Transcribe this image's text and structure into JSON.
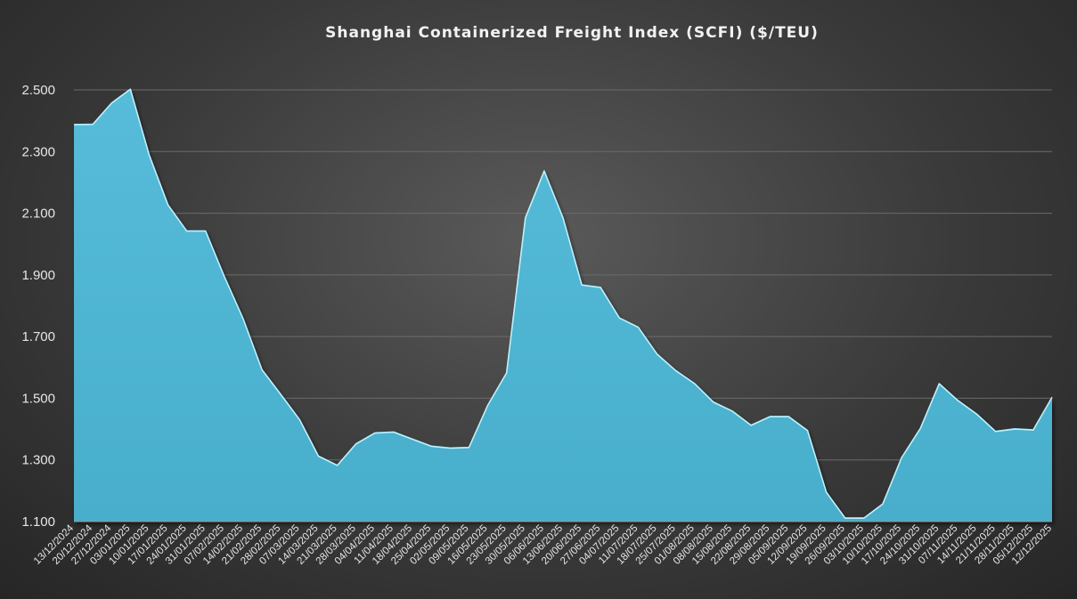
{
  "chart_data": {
    "type": "area",
    "title": "Shanghai Containerized Freight Index (SCFI) ($/TEU)",
    "xlabel": "",
    "ylabel": "",
    "ylim": [
      1100,
      2600
    ],
    "yticks": [
      1100,
      1300,
      1500,
      1700,
      1900,
      2100,
      2300,
      2500
    ],
    "ytick_labels": [
      "1.100",
      "1.300",
      "1.500",
      "1.700",
      "1.900",
      "2.100",
      "2.300",
      "2.500"
    ],
    "grid": true,
    "fill_color": "#4fb6d4",
    "x": [
      "13/12/2024",
      "20/12/2024",
      "27/12/2024",
      "03/01/2025",
      "10/01/2025",
      "17/01/2025",
      "24/01/2025",
      "31/01/2025",
      "07/02/2025",
      "14/02/2025",
      "21/02/2025",
      "28/02/2025",
      "07/03/2025",
      "14/03/2025",
      "21/03/2025",
      "28/03/2025",
      "04/04/2025",
      "11/04/2025",
      "18/04/2025",
      "25/04/2025",
      "02/05/2025",
      "09/05/2025",
      "16/05/2025",
      "23/05/2025",
      "30/05/2025",
      "06/06/2025",
      "13/06/2025",
      "20/06/2025",
      "27/06/2025",
      "04/07/2025",
      "11/07/2025",
      "18/07/2025",
      "25/07/2025",
      "01/08/2025",
      "08/08/2025",
      "15/08/2025",
      "22/08/2025",
      "29/08/2025",
      "05/09/2025",
      "12/09/2025",
      "19/09/2025",
      "26/09/2025",
      "03/10/2025",
      "10/10/2025",
      "17/10/2025",
      "24/10/2025",
      "31/10/2025",
      "07/11/2025",
      "14/11/2025",
      "21/11/2025",
      "28/11/2025",
      "05/12/2025",
      "12/12/2025"
    ],
    "values": [
      2390,
      2391,
      2460,
      2505,
      2292,
      2130,
      2045,
      2045,
      1897,
      1760,
      1595,
      1515,
      1433,
      1315,
      1285,
      1355,
      1390,
      1393,
      1370,
      1347,
      1341,
      1343,
      1480,
      1585,
      2088,
      2240,
      2088,
      1870,
      1862,
      1763,
      1733,
      1646,
      1592,
      1550,
      1490,
      1461,
      1415,
      1443,
      1443,
      1398,
      1198,
      1114,
      1114,
      1160,
      1310,
      1405,
      1550,
      1495,
      1451,
      1395,
      1403,
      1400,
      1506
    ]
  }
}
